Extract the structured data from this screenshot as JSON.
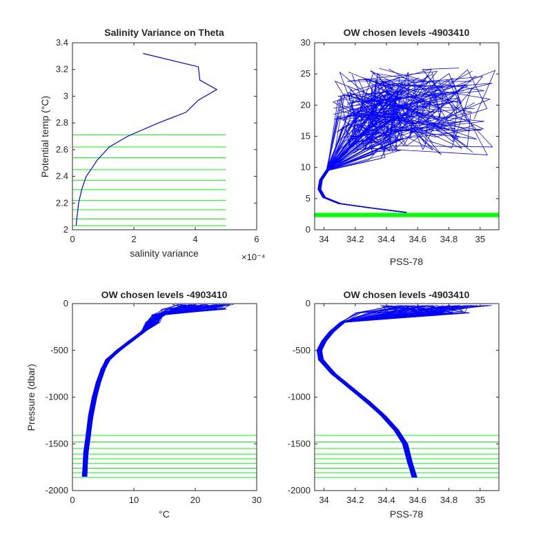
{
  "colors": {
    "data": "#0000ff",
    "levels": "#00ff00",
    "axes": "#262626"
  },
  "chart_data": [
    {
      "type": "line",
      "title": "Salinity Variance on Theta",
      "xlabel": "salinity variance",
      "ylabel": "Potential temp (°C)",
      "x_exponent_label": "×10⁻⁴",
      "xlim": [
        0,
        6
      ],
      "ylim": [
        2,
        3.4
      ],
      "xticks": [
        "0",
        "2",
        "4",
        "6"
      ],
      "yticks": [
        "2",
        "2.2",
        "2.4",
        "2.6",
        "2.8",
        "3",
        "3.2",
        "3.4"
      ],
      "series": [
        {
          "x": [
            0.12,
            0.15,
            0.2,
            0.3,
            0.45,
            0.6,
            0.8,
            1.2,
            1.8,
            2.8,
            3.7,
            4.1,
            4.7,
            4.15,
            4.1,
            2.3
          ],
          "y": [
            2.03,
            2.1,
            2.2,
            2.3,
            2.4,
            2.45,
            2.52,
            2.62,
            2.7,
            2.8,
            2.88,
            2.97,
            3.05,
            3.12,
            3.22,
            3.32
          ]
        }
      ],
      "chosen_levels": [
        2.03,
        2.08,
        2.15,
        2.22,
        2.3,
        2.37,
        2.45,
        2.54,
        2.62,
        2.71
      ],
      "level_x_range": [
        0,
        5
      ]
    },
    {
      "type": "line",
      "title": "OW chosen levels -4903410",
      "xlabel": "PSS-78",
      "ylabel": "",
      "xlim": [
        33.94,
        35.12
      ],
      "ylim": [
        0,
        30
      ],
      "xticks": [
        "34",
        "34.2",
        "34.4",
        "34.6",
        "34.8",
        "35"
      ],
      "yticks": [
        "0",
        "5",
        "10",
        "15",
        "20",
        "25",
        "30"
      ],
      "profile_spine": {
        "x": [
          34.52,
          34.3,
          34.1,
          34.0,
          33.97,
          33.98,
          34.02,
          34.08,
          34.15
        ],
        "y": [
          2.8,
          3.5,
          4.2,
          5.2,
          6.5,
          8.0,
          9.5,
          11.0,
          12.5
        ]
      },
      "spread": "upper profiles fan out between 12 and 26 °C across 34.0–35.1 PSS-78",
      "chosen_levels_band": [
        2.03,
        2.71
      ],
      "level_x_range": [
        33.94,
        35.12
      ]
    },
    {
      "type": "line",
      "title": "OW chosen levels -4903410",
      "xlabel": "°C",
      "ylabel": "Pressure (dbar)",
      "xlim": [
        0,
        30
      ],
      "ylim": [
        -2000,
        0
      ],
      "xticks": [
        "0",
        "10",
        "20",
        "30"
      ],
      "yticks": [
        "0",
        "-500",
        "-1000",
        "-1500",
        "-2000"
      ],
      "profile_spine": {
        "x": [
          2.0,
          2.2,
          2.6,
          3.0,
          3.6,
          4.2,
          5.0,
          5.8,
          7.5,
          9.5,
          11.5,
          13.0,
          14.0,
          14.8,
          16.0
        ],
        "y": [
          -1850,
          -1600,
          -1400,
          -1200,
          -1000,
          -850,
          -700,
          -600,
          -500,
          -400,
          -300,
          -200,
          -120,
          -60,
          -10
        ]
      },
      "spread": "surface temperatures spread from 14 to 26 °C above 200 dbar",
      "chosen_levels": [
        -1410,
        -1480,
        -1550,
        -1610,
        -1660,
        -1710,
        -1760,
        -1810,
        -1860
      ],
      "level_x_range": [
        0,
        30
      ]
    },
    {
      "type": "line",
      "title": "OW chosen levels -4903410",
      "xlabel": "PSS-78",
      "ylabel": "",
      "xlim": [
        33.94,
        35.12
      ],
      "ylim": [
        -2000,
        0
      ],
      "xticks": [
        "34",
        "34.2",
        "34.4",
        "34.6",
        "34.8",
        "35"
      ],
      "yticks": [
        "0",
        "-500",
        "-1000",
        "-1500",
        "-2000"
      ],
      "profile_spine": {
        "x": [
          34.58,
          34.55,
          34.52,
          34.46,
          34.38,
          34.28,
          34.17,
          34.06,
          33.98,
          33.97,
          34.0,
          34.05,
          34.12,
          34.2,
          34.35
        ],
        "y": [
          -1860,
          -1700,
          -1500,
          -1350,
          -1200,
          -1050,
          -900,
          -750,
          -600,
          -500,
          -400,
          -300,
          -200,
          -100,
          -20
        ]
      },
      "spread": "near-surface salinity spreads from 34.0 to 35.1 PSS-78",
      "chosen_levels": [
        -1410,
        -1480,
        -1550,
        -1610,
        -1660,
        -1710,
        -1760,
        -1810,
        -1860
      ],
      "level_x_range": [
        33.94,
        35.12
      ]
    }
  ]
}
